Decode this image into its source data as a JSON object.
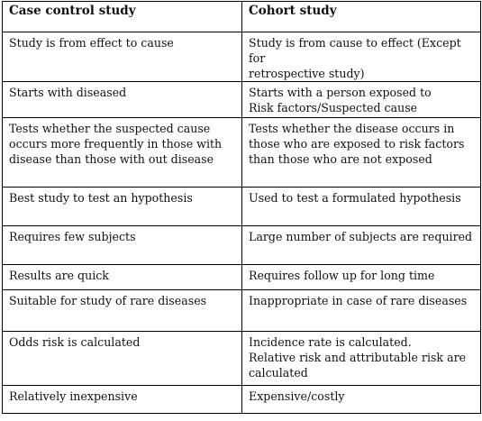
{
  "headers": {
    "col1": "Case control study",
    "col2": "Cohort study"
  },
  "rows": [
    {
      "case": [
        "Study is from effect to cause"
      ],
      "cohort": [
        "Study is from cause to effect (Except for",
        "retrospective study)"
      ]
    },
    {
      "case": [
        "Starts with diseased"
      ],
      "cohort": [
        "Starts with a person exposed to",
        "Risk factors/Suspected cause"
      ]
    },
    {
      "case": [
        "Tests whether the suspected cause",
        "occurs more frequently in those with",
        "disease than those with out disease"
      ],
      "cohort": [
        "Tests whether the disease occurs in",
        "those who are exposed to risk factors",
        "than those who are not exposed"
      ]
    },
    {
      "case": [
        "Best study to test an hypothesis"
      ],
      "cohort": [
        "Used to test a formulated hypothesis"
      ]
    },
    {
      "case": [
        "Requires few subjects"
      ],
      "cohort": [
        "Large number of subjects are required"
      ]
    },
    {
      "case": [
        "Results are quick"
      ],
      "cohort": [
        "Requires follow up for long time"
      ]
    },
    {
      "case": [
        "Suitable for study of rare diseases"
      ],
      "cohort": [
        "Inappropriate in case of rare diseases"
      ]
    },
    {
      "case": [
        "Odds risk is calculated"
      ],
      "cohort": [
        "Incidence rate is calculated.",
        "Relative risk and attributable risk are",
        "calculated"
      ]
    },
    {
      "case": [
        "Relatively inexpensive"
      ],
      "cohort": [
        "Expensive/costly"
      ]
    }
  ]
}
